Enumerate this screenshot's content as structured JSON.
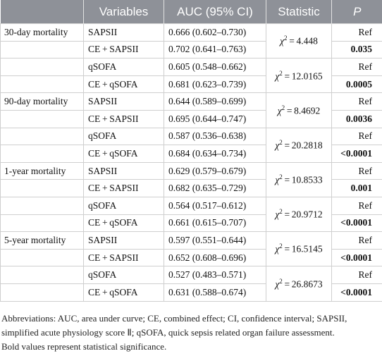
{
  "headers": {
    "outcome": "",
    "variables": "Variables",
    "auc": "AUC (95% CI)",
    "statistic": "Statistic",
    "p": "P"
  },
  "groups": [
    {
      "outcome": "30-day mortality",
      "rows": [
        {
          "variable": "SAPSII",
          "auc": "0.666 (0.602–0.730)",
          "p": "Ref",
          "bold": false
        },
        {
          "variable": "CE + SAPSII",
          "auc": "0.702 (0.641–0.763)",
          "p": "0.035",
          "bold": true
        },
        {
          "variable": "qSOFA",
          "auc": "0.605 (0.548–0.662)",
          "p": "Ref",
          "bold": false
        },
        {
          "variable": "CE + qSOFA",
          "auc": "0.681 (0.623–0.739)",
          "p": "0.0005",
          "bold": true
        }
      ],
      "stats": [
        "4.448",
        "12.0165"
      ]
    },
    {
      "outcome": "90-day mortality",
      "rows": [
        {
          "variable": "SAPSII",
          "auc": "0.644 (0.589–0.699)",
          "p": "Ref",
          "bold": false
        },
        {
          "variable": "CE + SAPSII",
          "auc": "0.695 (0.644–0.747)",
          "p": "0.0036",
          "bold": true
        },
        {
          "variable": "qSOFA",
          "auc": "0.587 (0.536–0.638)",
          "p": "Ref",
          "bold": false
        },
        {
          "variable": "CE + qSOFA",
          "auc": "0.684 (0.634–0.734)",
          "p": "<0.0001",
          "bold": true
        }
      ],
      "stats": [
        "8.4692",
        "20.2818"
      ]
    },
    {
      "outcome": "1-year mortality",
      "rows": [
        {
          "variable": "SAPSII",
          "auc": "0.629 (0.579–0.679)",
          "p": "Ref",
          "bold": false
        },
        {
          "variable": "CE + SAPSII",
          "auc": "0.682 (0.635–0.729)",
          "p": "0.001",
          "bold": true
        },
        {
          "variable": "qSOFA",
          "auc": "0.564 (0.517–0.612)",
          "p": "Ref",
          "bold": false
        },
        {
          "variable": "CE + qSOFA",
          "auc": "0.661 (0.615–0.707)",
          "p": "<0.0001",
          "bold": true
        }
      ],
      "stats": [
        "10.8533",
        "20.9712"
      ]
    },
    {
      "outcome": "5-year mortality",
      "rows": [
        {
          "variable": "SAPSII",
          "auc": "0.597 (0.551–0.644)",
          "p": "Ref",
          "bold": false
        },
        {
          "variable": "CE + SAPSII",
          "auc": "0.652 (0.608–0.696)",
          "p": "<0.0001",
          "bold": true
        },
        {
          "variable": "qSOFA",
          "auc": "0.527 (0.483–0.571)",
          "p": "Ref",
          "bold": false
        },
        {
          "variable": "CE + qSOFA",
          "auc": "0.631 (0.588–0.674)",
          "p": "<0.0001",
          "bold": true
        }
      ],
      "stats": [
        "16.5145",
        "26.8673"
      ]
    }
  ],
  "chi_symbol": "χ",
  "chi_sup": "2",
  "footnote": {
    "abbreviations": "Abbreviations: AUC, area under curve; CE, combined effect; CI, confidence interval; SAPSII, simplified acute physiology score Ⅱ; qSOFA, quick sepsis related organ failure assessment.",
    "bold_note": "Bold values represent statistical significance."
  }
}
